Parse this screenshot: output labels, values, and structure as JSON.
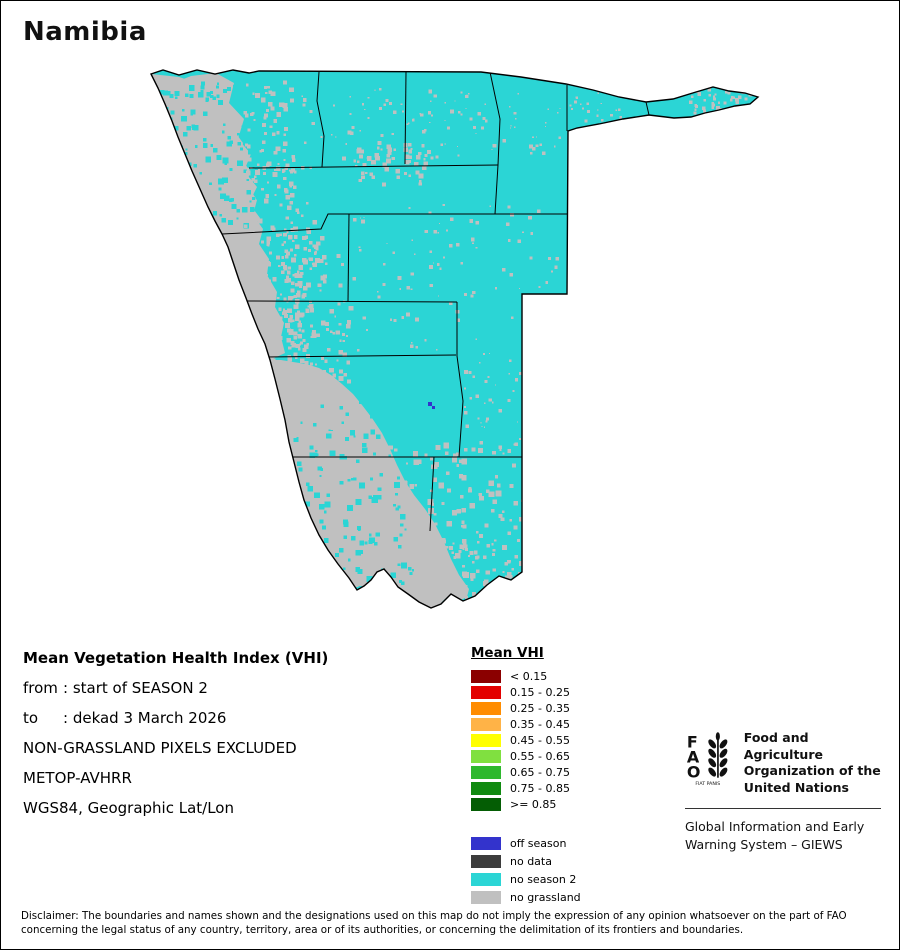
{
  "page": {
    "title": "Namibia"
  },
  "map": {
    "country": "Namibia",
    "colors": {
      "no_season_2": "#2BD5D5",
      "no_grassland": "#C0C0C0",
      "off_season": "#3333CC",
      "no_data": "#3C3C3C",
      "border": "#000000"
    }
  },
  "info": {
    "heading": "Mean Vegetation Health Index (VHI)",
    "from_label": "from",
    "from_value": ": start of SEASON 2",
    "to_label": "to",
    "to_value": ": dekad 3 March 2026",
    "line3": "NON-GRASSLAND PIXELS EXCLUDED",
    "line4": "METOP-AVHRR",
    "line5": "WGS84, Geographic Lat/Lon"
  },
  "legend": {
    "title": "Mean VHI",
    "vhi_classes": [
      {
        "color": "#8B0000",
        "label": "< 0.15"
      },
      {
        "color": "#E30000",
        "label": "0.15 - 0.25"
      },
      {
        "color": "#FF8C00",
        "label": "0.25 - 0.35"
      },
      {
        "color": "#FFB347",
        "label": "0.35 - 0.45"
      },
      {
        "color": "#FFFF00",
        "label": "0.45 - 0.55"
      },
      {
        "color": "#80E040",
        "label": "0.55 - 0.65"
      },
      {
        "color": "#2EB82E",
        "label": "0.65 - 0.75"
      },
      {
        "color": "#108A10",
        "label": "0.75 - 0.85"
      },
      {
        "color": "#045D04",
        "label": ">= 0.85"
      }
    ],
    "other_classes": [
      {
        "color": "#3333CC",
        "label": "off season"
      },
      {
        "color": "#3C3C3C",
        "label": "no data"
      },
      {
        "color": "#2BD5D5",
        "label": "no season 2"
      },
      {
        "color": "#C0C0C0",
        "label": "no grassland"
      }
    ]
  },
  "footer": {
    "fao_letters": [
      "F",
      "A",
      "O"
    ],
    "fao_motto": "FIAT PANIS",
    "org_lines": [
      "Food and Agriculture",
      "Organization of the",
      "United Nations"
    ],
    "giews_lines": [
      "Global Information and Early",
      "Warning System – GIEWS"
    ]
  },
  "disclaimer": "Disclaimer: The boundaries and names shown and the designations used on this map do not imply the expression of any opinion whatsoever on the part of FAO concerning the legal status of any country, territory, area or of its authorities, or concerning the delimitation of its frontiers and boundaries."
}
